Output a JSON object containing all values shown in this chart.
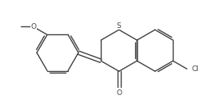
{
  "background_color": "#ffffff",
  "bond_color": "#404040",
  "bond_width": 1.0,
  "figsize": [
    2.6,
    1.29
  ],
  "dpi": 100,
  "atoms": {
    "S_label": "S",
    "Cl_label": "Cl",
    "O_methoxy_label": "O",
    "O_ketone_label": "O"
  },
  "font_size": 6.5
}
